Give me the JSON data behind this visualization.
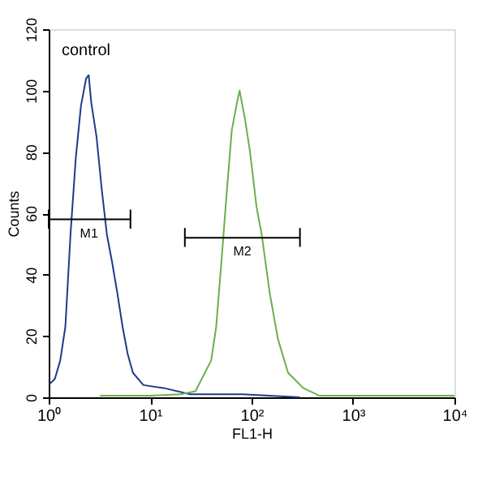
{
  "chart_data": {
    "type": "line",
    "xlabel": "FL1-H",
    "ylabel": "Counts",
    "log": "x",
    "grid": false,
    "marker": "none",
    "line_style": "solid",
    "xlim": [
      1,
      10000
    ],
    "xticks": [
      {
        "value": 1,
        "label": "10⁰"
      },
      {
        "value": 10,
        "label": "10¹"
      },
      {
        "value": 100,
        "label": "10²"
      },
      {
        "value": 1000,
        "label": "10³"
      },
      {
        "value": 10000,
        "label": "10⁴"
      }
    ],
    "ylim": [
      0,
      120
    ],
    "yticks": [
      0,
      20,
      40,
      60,
      80,
      100,
      120
    ],
    "annotations": [
      "control",
      {
        "text": "M1",
        "x": 2.5,
        "y": 58
      },
      {
        "text": "M2",
        "x": 81,
        "y": 52
      }
    ],
    "series": [
      {
        "color": "#1f3a8a",
        "x": [
          1,
          1.15,
          1.3,
          1.46,
          1.64,
          1.85,
          2.08,
          2.34,
          2.48,
          2.63,
          2.96,
          3.33,
          3.75,
          4.22,
          4.75,
          5.35,
          6.02,
          6.77,
          8.58,
          13.7,
          24.8,
          81,
          300
        ],
        "values": [
          4,
          6,
          12,
          23,
          53,
          78,
          95,
          104,
          105,
          96,
          85,
          68,
          53,
          44,
          34,
          23,
          14,
          8,
          4,
          3,
          1,
          1,
          0
        ]
      },
      {
        "color": "#6ab04c",
        "x": [
          3.2,
          10,
          20,
          28,
          40,
          44.8,
          50.4,
          56.7,
          63.8,
          71.8,
          76.2,
          85.8,
          96.6,
          112,
          126,
          151,
          182,
          229,
          324,
          468,
          10000
        ],
        "values": [
          0.5,
          0.5,
          1,
          2,
          12,
          23,
          44,
          66,
          87,
          96,
          100,
          91,
          80,
          62,
          53,
          34,
          19,
          8,
          3,
          0.5,
          0.5
        ]
      },
      {
        "color": "#000000",
        "x": [
          1,
          1,
          1,
          6.4,
          6.4,
          6.4
        ],
        "values": [
          55,
          61,
          58,
          58,
          61,
          55
        ]
      },
      {
        "color": "#000000",
        "x": [
          22,
          22,
          22,
          300,
          300,
          300
        ],
        "values": [
          49,
          55,
          52,
          52,
          55,
          49
        ]
      }
    ]
  }
}
